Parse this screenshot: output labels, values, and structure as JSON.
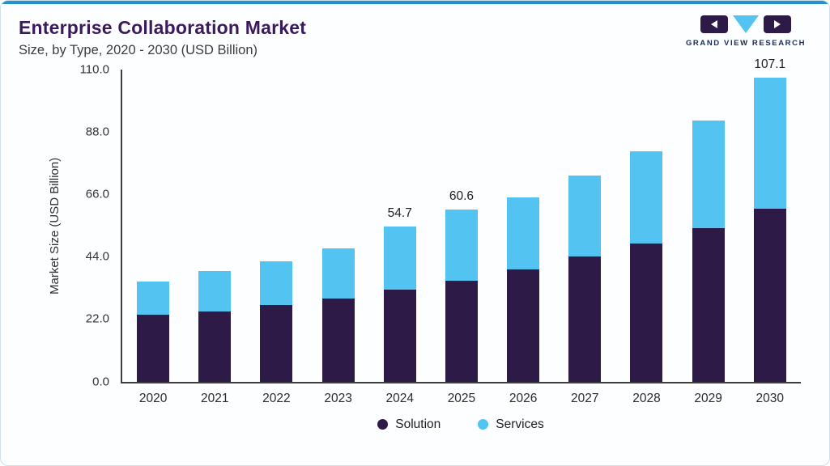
{
  "header": {
    "title": "Enterprise Collaboration Market",
    "subtitle": "Size, by Type, 2020 - 2030 (USD Billion)"
  },
  "logo": {
    "text": "GRAND VIEW RESEARCH"
  },
  "chart_data": {
    "type": "bar",
    "stacked": true,
    "title": "Enterprise Collaboration Market Size, by Type, 2020 - 2030 (USD Billion)",
    "categories": [
      "2020",
      "2021",
      "2022",
      "2023",
      "2024",
      "2025",
      "2026",
      "2027",
      "2028",
      "2029",
      "2030"
    ],
    "series": [
      {
        "name": "Solution",
        "color": "#2e1a47",
        "values": [
          23.5,
          24.8,
          27.0,
          29.2,
          32.3,
          35.4,
          39.5,
          44.0,
          48.5,
          54.0,
          60.8
        ]
      },
      {
        "name": "Services",
        "color": "#53c3f1",
        "values": [
          11.6,
          14.0,
          15.3,
          17.8,
          22.4,
          25.2,
          25.5,
          28.5,
          32.5,
          38.0,
          46.3
        ]
      }
    ],
    "totals": [
      35.1,
      38.8,
      42.3,
      47.0,
      54.7,
      60.6,
      65.0,
      72.5,
      81.0,
      92.0,
      107.1
    ],
    "bar_labels": [
      "",
      "",
      "",
      "",
      "54.7",
      "60.6",
      "",
      "",
      "",
      "",
      "107.1"
    ],
    "xlabel": "",
    "ylabel": "Market Size (USD Billion)",
    "ylim": [
      0,
      110
    ],
    "yticks": [
      "0.0",
      "22.0",
      "44.0",
      "66.0",
      "88.0",
      "110.0"
    ],
    "grid": false,
    "legend_position": "bottom"
  },
  "colors": {
    "accent_line": "#2491cc",
    "title": "#3a1a5c",
    "solution": "#2e1a47",
    "services": "#53c3f1",
    "card_border": "#cfe0ec"
  }
}
